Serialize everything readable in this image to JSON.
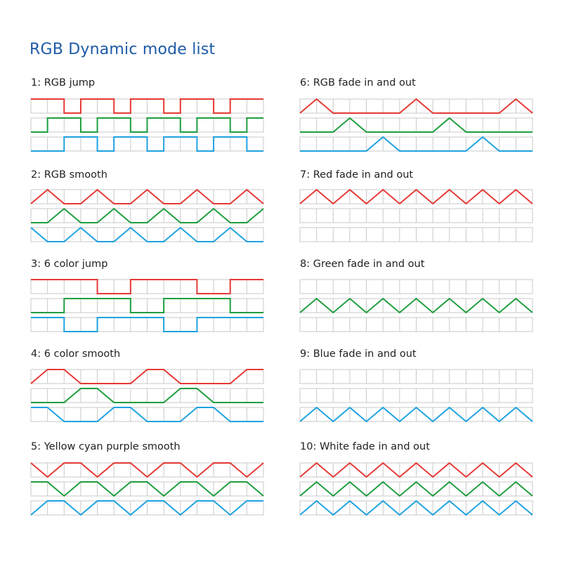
{
  "title": "RGB Dynamic mode list",
  "colors": {
    "red": "#e53935",
    "green": "#1e9e3e",
    "blue": "#1ea2e0",
    "grid": "#c9c9c9"
  },
  "cells_per_row": 14,
  "modes": [
    {
      "label": "1: RGB jump",
      "channels": {
        "red": [
          1,
          1,
          0,
          1,
          1,
          0,
          1,
          1,
          0,
          1,
          1,
          0,
          1,
          1,
          0
        ],
        "green": [
          0,
          1,
          1,
          0,
          1,
          1,
          0,
          1,
          1,
          0,
          1,
          1,
          0,
          1,
          1
        ],
        "blue": [
          0,
          0,
          1,
          1,
          0,
          1,
          1,
          0,
          1,
          1,
          0,
          1,
          1,
          0,
          0
        ]
      }
    },
    {
      "label": "2: RGB smooth",
      "channels": {
        "red": [
          0,
          1,
          0,
          0,
          1,
          0,
          0,
          1,
          0,
          0,
          1,
          0,
          0,
          1,
          0
        ],
        "green": [
          0,
          0,
          1,
          0,
          0,
          1,
          0,
          0,
          1,
          0,
          0,
          1,
          0,
          0,
          1
        ],
        "blue": [
          1,
          0,
          0,
          1,
          0,
          0,
          1,
          0,
          0,
          1,
          0,
          0,
          1,
          0,
          0
        ]
      }
    },
    {
      "label": "3: 6 color jump",
      "channels": {
        "red": [
          1,
          1,
          1,
          1,
          0,
          0,
          1,
          1,
          1,
          1,
          0,
          0,
          1,
          1,
          1
        ],
        "green": [
          0,
          0,
          1,
          1,
          1,
          1,
          0,
          0,
          1,
          1,
          1,
          1,
          0,
          0,
          0
        ],
        "blue": [
          1,
          1,
          0,
          0,
          1,
          1,
          1,
          1,
          0,
          0,
          1,
          1,
          1,
          1,
          0
        ]
      }
    },
    {
      "label": "4: 6 color smooth",
      "channels": {
        "red": [
          0,
          1,
          1,
          0,
          0,
          0,
          0,
          1,
          1,
          0,
          0,
          0,
          0,
          1,
          1
        ],
        "green": [
          0,
          0,
          0,
          1,
          1,
          0,
          0,
          0,
          0,
          1,
          1,
          0,
          0,
          0,
          0
        ],
        "blue": [
          1,
          1,
          0,
          0,
          0,
          1,
          1,
          0,
          0,
          0,
          1,
          1,
          0,
          0,
          0
        ]
      }
    },
    {
      "label": "5: Yellow cyan purple smooth",
      "channels": {
        "red": [
          1,
          0,
          1,
          1,
          0,
          1,
          1,
          0,
          1,
          1,
          0,
          1,
          1,
          0,
          1
        ],
        "green": [
          1,
          1,
          0,
          1,
          1,
          0,
          1,
          1,
          0,
          1,
          1,
          0,
          1,
          1,
          0
        ],
        "blue": [
          0,
          1,
          1,
          0,
          1,
          1,
          0,
          1,
          1,
          0,
          1,
          1,
          0,
          1,
          1
        ]
      }
    },
    {
      "label": "6: RGB fade in and out",
      "channels": {
        "red": [
          0,
          1,
          0,
          0,
          0,
          0,
          0,
          1,
          0,
          0,
          0,
          0,
          0,
          1,
          0
        ],
        "green": [
          0,
          0,
          0,
          1,
          0,
          0,
          0,
          0,
          0,
          1,
          0,
          0,
          0,
          0,
          0
        ],
        "blue": [
          0,
          0,
          0,
          0,
          0,
          1,
          0,
          0,
          0,
          0,
          0,
          1,
          0,
          0,
          0
        ]
      }
    },
    {
      "label": "7: Red fade in and out",
      "channels": {
        "red": [
          0,
          1,
          0,
          1,
          0,
          1,
          0,
          1,
          0,
          1,
          0,
          1,
          0,
          1,
          0
        ],
        "green": [],
        "blue": []
      }
    },
    {
      "label": "8: Green fade in and out",
      "channels": {
        "red": [],
        "green": [
          0,
          1,
          0,
          1,
          0,
          1,
          0,
          1,
          0,
          1,
          0,
          1,
          0,
          1,
          0
        ],
        "blue": []
      }
    },
    {
      "label": "9: Blue fade in and out",
      "channels": {
        "red": [],
        "green": [],
        "blue": [
          0,
          1,
          0,
          1,
          0,
          1,
          0,
          1,
          0,
          1,
          0,
          1,
          0,
          1,
          0
        ]
      }
    },
    {
      "label": "10: White fade in and out",
      "channels": {
        "red": [
          0,
          1,
          0,
          1,
          0,
          1,
          0,
          1,
          0,
          1,
          0,
          1,
          0,
          1,
          0
        ],
        "green": [
          0,
          1,
          0,
          1,
          0,
          1,
          0,
          1,
          0,
          1,
          0,
          1,
          0,
          1,
          0
        ],
        "blue": [
          0,
          1,
          0,
          1,
          0,
          1,
          0,
          1,
          0,
          1,
          0,
          1,
          0,
          1,
          0
        ]
      }
    }
  ]
}
